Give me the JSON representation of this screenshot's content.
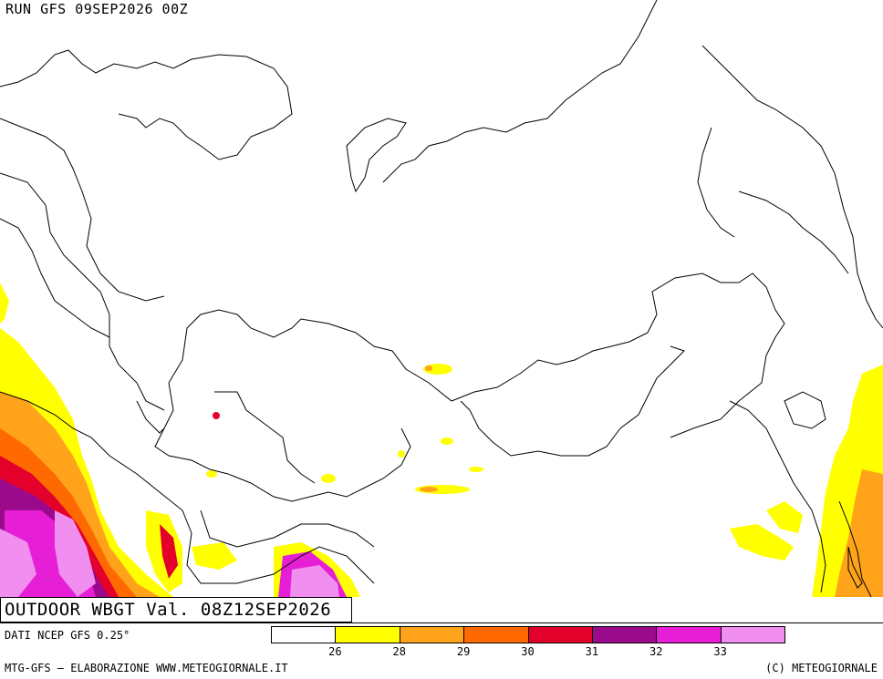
{
  "run_label": "RUN GFS 09SEP2026 00Z",
  "title": "OUTDOOR WBGT Val. 08Z12SEP2026",
  "data_source": "DATI NCEP GFS 0.25°",
  "footer_left": "MTG-GFS — ELABORAZIONE WWW.METEOGIORNALE.IT",
  "footer_right": "(C) METEOGIORNALE",
  "legend": {
    "colors": [
      "#ffffff",
      "#ffff00",
      "#ffa31a",
      "#ff6a00",
      "#e3002b",
      "#9c0a8c",
      "#e61fd6",
      "#f08ff0"
    ],
    "ticks": [
      "26",
      "28",
      "29",
      "30",
      "31",
      "32",
      "33"
    ]
  },
  "colors": {
    "border_lines": "#000000",
    "ocean": "#ffffff"
  }
}
